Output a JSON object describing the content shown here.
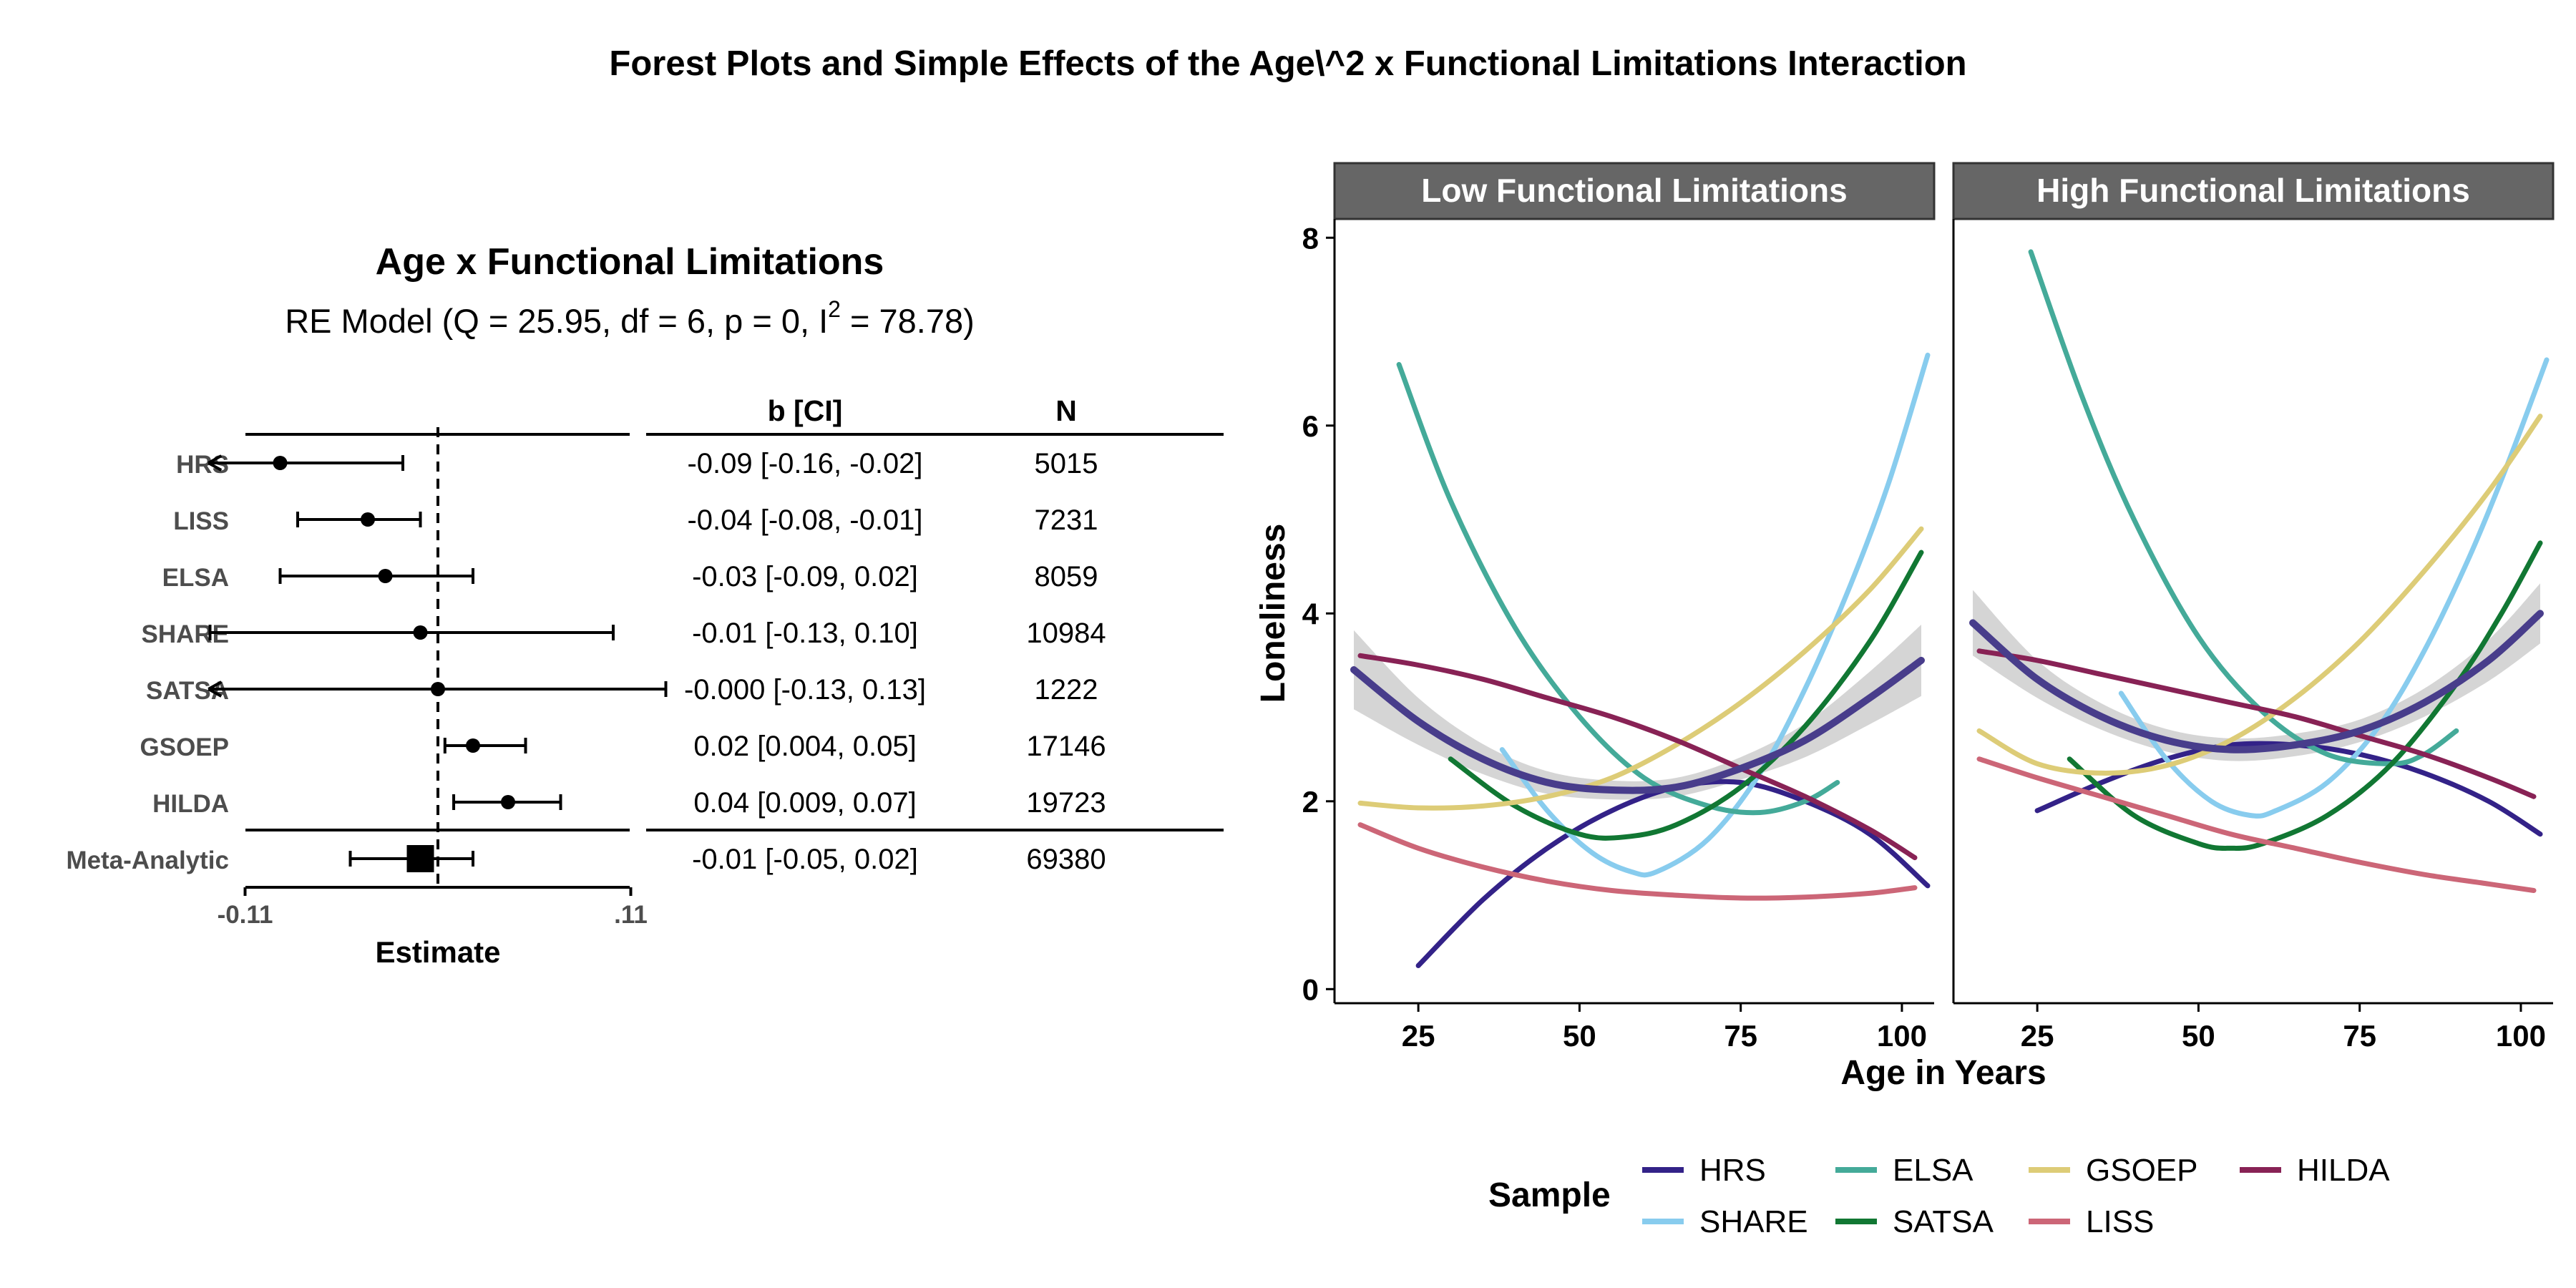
{
  "figure_title": "Forest Plots and Simple Effects of the Age\\^2 x Functional Limitations Interaction",
  "forest": {
    "title": "Age x Functional Limitations",
    "subtitle_main": "RE Model (Q = 25.95, df = 6, p = 0, I",
    "subtitle_sup": "2",
    "subtitle_end": " = 78.78)",
    "col_ci": "b [CI]",
    "col_n": "N",
    "xlabel": "Estimate",
    "ticks": [
      {
        "value": -0.11,
        "label": "-0.11"
      },
      {
        "value": 0.11,
        "label": ".11"
      }
    ],
    "xlim": [
      -0.135,
      0.135
    ],
    "rows": [
      {
        "label": "HRS",
        "est": -0.09,
        "lo": -0.16,
        "hi": -0.02,
        "ci_text": "-0.09 [-0.16, -0.02]",
        "n": "5015",
        "arrow_lo": true
      },
      {
        "label": "LISS",
        "est": -0.04,
        "lo": -0.08,
        "hi": -0.01,
        "ci_text": "-0.04 [-0.08, -0.01]",
        "n": "7231"
      },
      {
        "label": "ELSA",
        "est": -0.03,
        "lo": -0.09,
        "hi": 0.02,
        "ci_text": "-0.03 [-0.09, 0.02]",
        "n": "8059"
      },
      {
        "label": "SHARE",
        "est": -0.01,
        "lo": -0.13,
        "hi": 0.1,
        "ci_text": "-0.01 [-0.13, 0.10]",
        "n": "10984"
      },
      {
        "label": "SATSA",
        "est": 0.0,
        "lo": -0.13,
        "hi": 0.13,
        "ci_text": "-0.000 [-0.13, 0.13]",
        "n": "1222",
        "arrow_lo": true
      },
      {
        "label": "GSOEP",
        "est": 0.02,
        "lo": 0.004,
        "hi": 0.05,
        "ci_text": "0.02 [0.004, 0.05]",
        "n": "17146"
      },
      {
        "label": "HILDA",
        "est": 0.04,
        "lo": 0.009,
        "hi": 0.07,
        "ci_text": "0.04 [0.009, 0.07]",
        "n": "19723"
      }
    ],
    "meta": {
      "label": "Meta-Analytic",
      "est": -0.01,
      "lo": -0.05,
      "hi": 0.02,
      "ci_text": "-0.01 [-0.05, 0.02]",
      "n": "69380"
    }
  },
  "chart_data": {
    "type": "line",
    "ylabel": "Loneliness",
    "xlabel": "Age in Years",
    "xlim": [
      12,
      105
    ],
    "ylim": [
      -0.15,
      8.2
    ],
    "xticks": [
      25,
      50,
      75,
      100
    ],
    "yticks": [
      0,
      2,
      4,
      6,
      8
    ],
    "facets": [
      "Low Functional Limitations",
      "High Functional Limitations"
    ],
    "legend_title": "Sample",
    "series": [
      {
        "name": "HRS",
        "color": "#332288",
        "low": {
          "x": [
            25,
            35,
            45,
            55,
            65,
            75,
            85,
            95,
            104
          ],
          "y": [
            0.25,
            0.95,
            1.5,
            1.9,
            2.15,
            2.2,
            2.0,
            1.65,
            1.1
          ]
        },
        "high": {
          "x": [
            25,
            35,
            45,
            55,
            65,
            75,
            85,
            95,
            103
          ],
          "y": [
            1.9,
            2.2,
            2.45,
            2.6,
            2.6,
            2.5,
            2.3,
            2.0,
            1.65
          ]
        }
      },
      {
        "name": "SHARE",
        "color": "#88CCEE",
        "low": {
          "x": [
            38,
            45,
            52,
            58,
            62,
            70,
            78,
            85,
            92,
            98,
            104
          ],
          "y": [
            2.55,
            1.9,
            1.45,
            1.25,
            1.25,
            1.6,
            2.3,
            3.2,
            4.3,
            5.4,
            6.75
          ]
        },
        "high": {
          "x": [
            38,
            45,
            52,
            58,
            62,
            70,
            78,
            85,
            92,
            98,
            104
          ],
          "y": [
            3.15,
            2.45,
            2.0,
            1.85,
            1.9,
            2.2,
            2.8,
            3.6,
            4.6,
            5.6,
            6.7
          ]
        }
      },
      {
        "name": "ELSA",
        "color": "#44AA99",
        "low": {
          "x": [
            22,
            30,
            40,
            50,
            60,
            70,
            78,
            85,
            90
          ],
          "y": [
            6.65,
            5.2,
            3.85,
            2.9,
            2.25,
            1.95,
            1.88,
            2.0,
            2.2
          ]
        },
        "high": {
          "x": [
            24,
            32,
            40,
            50,
            60,
            70,
            80,
            85,
            90
          ],
          "y": [
            7.85,
            6.3,
            5.0,
            3.75,
            2.95,
            2.5,
            2.4,
            2.5,
            2.75
          ]
        }
      },
      {
        "name": "SATSA",
        "color": "#117733",
        "low": {
          "x": [
            30,
            40,
            50,
            57,
            65,
            75,
            85,
            95,
            103
          ],
          "y": [
            2.45,
            1.95,
            1.65,
            1.62,
            1.75,
            2.15,
            2.8,
            3.7,
            4.65
          ]
        },
        "high": {
          "x": [
            30,
            40,
            50,
            55,
            60,
            70,
            80,
            90,
            97,
            103
          ],
          "y": [
            2.45,
            1.85,
            1.55,
            1.5,
            1.55,
            1.85,
            2.4,
            3.25,
            4.0,
            4.75
          ]
        }
      },
      {
        "name": "GSOEP",
        "color": "#DDCC77",
        "low": {
          "x": [
            16,
            25,
            35,
            45,
            55,
            65,
            75,
            85,
            95,
            103
          ],
          "y": [
            1.98,
            1.93,
            1.95,
            2.05,
            2.25,
            2.6,
            3.05,
            3.6,
            4.25,
            4.9
          ]
        },
        "high": {
          "x": [
            16,
            25,
            35,
            45,
            55,
            65,
            75,
            85,
            95,
            103
          ],
          "y": [
            2.75,
            2.4,
            2.3,
            2.38,
            2.65,
            3.1,
            3.7,
            4.45,
            5.3,
            6.1
          ]
        }
      },
      {
        "name": "LISS",
        "color": "#CC6677",
        "low": {
          "x": [
            16,
            25,
            35,
            45,
            55,
            65,
            75,
            85,
            95,
            102
          ],
          "y": [
            1.75,
            1.5,
            1.3,
            1.15,
            1.05,
            1.0,
            0.97,
            0.98,
            1.02,
            1.08
          ]
        },
        "high": {
          "x": [
            16,
            25,
            35,
            45,
            55,
            65,
            75,
            85,
            95,
            102
          ],
          "y": [
            2.45,
            2.25,
            2.05,
            1.85,
            1.65,
            1.5,
            1.35,
            1.22,
            1.12,
            1.05
          ]
        }
      },
      {
        "name": "HILDA",
        "color": "#882255",
        "low": {
          "x": [
            16,
            25,
            35,
            45,
            55,
            65,
            75,
            85,
            95,
            102
          ],
          "y": [
            3.55,
            3.45,
            3.3,
            3.1,
            2.9,
            2.65,
            2.35,
            2.05,
            1.7,
            1.4
          ]
        },
        "high": {
          "x": [
            16,
            25,
            35,
            45,
            55,
            65,
            75,
            85,
            95,
            102
          ],
          "y": [
            3.6,
            3.5,
            3.35,
            3.2,
            3.05,
            2.9,
            2.7,
            2.5,
            2.25,
            2.05
          ]
        }
      }
    ],
    "meta_line": {
      "name": "Meta-Analytic",
      "color": "#483D8B",
      "band_color": "#D3D3D3",
      "low": {
        "x": [
          15,
          25,
          35,
          45,
          55,
          65,
          75,
          85,
          95,
          103
        ],
        "y": [
          3.4,
          2.85,
          2.45,
          2.2,
          2.12,
          2.15,
          2.35,
          2.65,
          3.1,
          3.5
        ],
        "band": [
          0.42,
          0.25,
          0.16,
          0.12,
          0.1,
          0.1,
          0.12,
          0.18,
          0.28,
          0.38
        ]
      },
      "high": {
        "x": [
          15,
          25,
          35,
          45,
          55,
          65,
          75,
          85,
          95,
          103
        ],
        "y": [
          3.9,
          3.3,
          2.9,
          2.65,
          2.55,
          2.6,
          2.75,
          3.05,
          3.5,
          4.0
        ],
        "band": [
          0.35,
          0.2,
          0.14,
          0.12,
          0.12,
          0.12,
          0.12,
          0.15,
          0.22,
          0.32
        ]
      }
    }
  }
}
